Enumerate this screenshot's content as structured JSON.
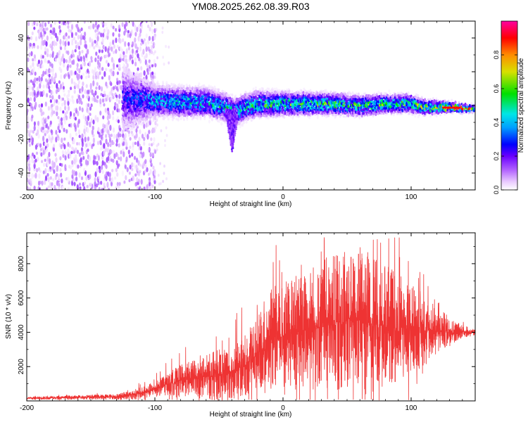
{
  "title": "YM08.2025.262.08.39.R03",
  "colors": {
    "snr_line": "#ee3333",
    "axis": "#000000",
    "colormap": [
      "#ffffff",
      "#e8c8ff",
      "#b060ff",
      "#6a00ff",
      "#0000ff",
      "#00a0ff",
      "#00e6e6",
      "#00e000",
      "#d8e000",
      "#ff8c00",
      "#ff0000",
      "#ff00a0"
    ]
  },
  "chart_data": [
    {
      "type": "heatmap",
      "name": "spectrogram",
      "title": "YM08.2025.262.08.39.R03",
      "xlabel": "Height of straight line (km)",
      "ylabel": "Frequency (Hz)",
      "xlim": [
        -200,
        150
      ],
      "ylim": [
        -50,
        50
      ],
      "x_ticks": [
        -200,
        -100,
        0,
        100
      ],
      "x_tick_labels": [
        "-200",
        "-100",
        "0",
        "100"
      ],
      "y_ticks": [
        -40,
        -20,
        0,
        20,
        40
      ],
      "y_tick_labels": [
        "-40",
        "-20",
        "0",
        "20",
        "40"
      ],
      "colorbar": {
        "label": "Normalized spectral amplitude",
        "range": [
          0,
          1
        ],
        "ticks": [
          0.0,
          0.2,
          0.4,
          0.6,
          0.8
        ],
        "tick_labels": [
          "0.0",
          "0.2",
          "0.4",
          "0.6",
          "0.8"
        ]
      },
      "noise_region": {
        "x_range": [
          -200,
          -100
        ],
        "f_range": [
          -50,
          50
        ],
        "amplitude": 0.15
      },
      "signal_band": {
        "x_range": [
          -125,
          150
        ],
        "center_freq": [
          [
            -125,
            4
          ],
          [
            -100,
            3
          ],
          [
            -80,
            2
          ],
          [
            -60,
            2
          ],
          [
            -45,
            -1
          ],
          [
            -38,
            -4
          ],
          [
            -30,
            -1
          ],
          [
            -20,
            1
          ],
          [
            0,
            1
          ],
          [
            20,
            1
          ],
          [
            40,
            1
          ],
          [
            60,
            0
          ],
          [
            80,
            1
          ],
          [
            100,
            1
          ],
          [
            110,
            -1
          ],
          [
            130,
            -1
          ],
          [
            150,
            -2
          ]
        ],
        "half_width_hz": [
          [
            -125,
            18
          ],
          [
            -100,
            9
          ],
          [
            -50,
            8
          ],
          [
            0,
            7
          ],
          [
            100,
            5
          ],
          [
            130,
            3
          ],
          [
            150,
            2
          ]
        ],
        "dip": {
          "x": -40,
          "freq_min": -28
        },
        "peak_amplitude": [
          [
            -125,
            0.3
          ],
          [
            -100,
            0.45
          ],
          [
            -60,
            0.5
          ],
          [
            0,
            0.55
          ],
          [
            100,
            0.6
          ],
          [
            120,
            0.7
          ],
          [
            135,
            0.9
          ],
          [
            150,
            0.6
          ]
        ]
      }
    },
    {
      "type": "line",
      "name": "snr",
      "title": "",
      "xlabel": "Height of straight line (km)",
      "ylabel": "SNR (10 * v/v)",
      "xlim": [
        -200,
        150
      ],
      "ylim": [
        0,
        9800
      ],
      "x_ticks": [
        -200,
        -100,
        0,
        100
      ],
      "x_tick_labels": [
        "-200",
        "-100",
        "0",
        "100"
      ],
      "y_ticks": [
        2000,
        4000,
        6000,
        8000
      ],
      "y_tick_labels": [
        "2000",
        "4000",
        "6000",
        "8000"
      ],
      "series": [
        {
          "name": "SNR",
          "color": "#ee3333",
          "baseline": [
            [
              -200,
              150
            ],
            [
              -130,
              250
            ],
            [
              -110,
              450
            ],
            [
              -100,
              700
            ],
            [
              -90,
              1000
            ],
            [
              -80,
              1200
            ],
            [
              -60,
              1400
            ],
            [
              -45,
              1600
            ],
            [
              -30,
              2000
            ],
            [
              -20,
              2800
            ],
            [
              0,
              3800
            ],
            [
              20,
              4200
            ],
            [
              40,
              4600
            ],
            [
              60,
              4700
            ],
            [
              80,
              4300
            ],
            [
              100,
              4200
            ],
            [
              120,
              4100
            ],
            [
              140,
              4050
            ],
            [
              150,
              3950
            ]
          ],
          "spread": [
            [
              -200,
              80
            ],
            [
              -130,
              150
            ],
            [
              -100,
              450
            ],
            [
              -80,
              900
            ],
            [
              -50,
              1500
            ],
            [
              -30,
              1800
            ],
            [
              -10,
              2600
            ],
            [
              10,
              3400
            ],
            [
              40,
              4000
            ],
            [
              60,
              4300
            ],
            [
              80,
              3600
            ],
            [
              100,
              2800
            ],
            [
              120,
              1400
            ],
            [
              140,
              350
            ],
            [
              150,
              200
            ]
          ],
          "max": 9600
        }
      ]
    }
  ]
}
